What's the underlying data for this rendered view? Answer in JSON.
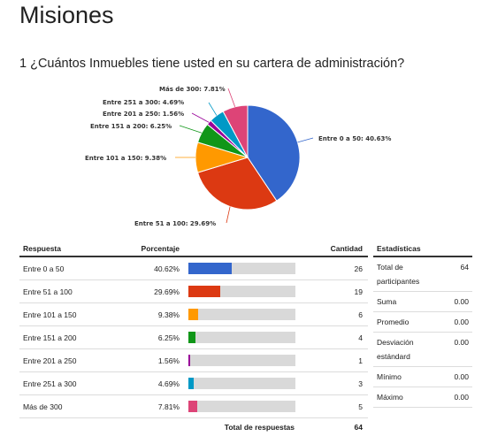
{
  "page": {
    "title": "Misiones"
  },
  "question": "1 ¿Cuántos Inmuebles tiene usted en su cartera de administración?",
  "chart_data": {
    "type": "pie",
    "title": "",
    "categories": [
      "Entre 0 a 50",
      "Entre 51 a 100",
      "Entre 101 a 150",
      "Entre 151 a 200",
      "Entre 201 a 250",
      "Entre 251 a 300",
      "Más de 300"
    ],
    "values": [
      40.63,
      29.69,
      9.38,
      6.25,
      1.56,
      4.69,
      7.81
    ],
    "labels": [
      "Entre 0 a 50: 40.63%",
      "Entre 51 a 100: 29.69%",
      "Entre 101 a 150: 9.38%",
      "Entre 151 a 200: 6.25%",
      "Entre 201 a 250: 1.56%",
      "Entre 251 a 300: 4.69%",
      "Más de 300: 7.81%"
    ],
    "colors": [
      "#3366cc",
      "#dc3912",
      "#ff9900",
      "#109618",
      "#990099",
      "#0099c6",
      "#dd4477"
    ]
  },
  "table": {
    "headers": {
      "response": "Respuesta",
      "percentage": "Porcentaje",
      "count": "Cantidad"
    },
    "rows": [
      {
        "response": "Entre 0 a 50",
        "percentage": "40.62%",
        "fraction": 0.4062,
        "count": "26"
      },
      {
        "response": "Entre 51 a 100",
        "percentage": "29.69%",
        "fraction": 0.2969,
        "count": "19"
      },
      {
        "response": "Entre 101 a 150",
        "percentage": "9.38%",
        "fraction": 0.0938,
        "count": "6"
      },
      {
        "response": "Entre 151 a 200",
        "percentage": "6.25%",
        "fraction": 0.0625,
        "count": "4"
      },
      {
        "response": "Entre 201 a 250",
        "percentage": "1.56%",
        "fraction": 0.0156,
        "count": "1"
      },
      {
        "response": "Entre 251 a 300",
        "percentage": "4.69%",
        "fraction": 0.0469,
        "count": "3"
      },
      {
        "response": "Más de 300",
        "percentage": "7.81%",
        "fraction": 0.0781,
        "count": "5"
      }
    ],
    "total_label": "Total de respuestas",
    "total_value": "64"
  },
  "stats": {
    "header": "Estadísticas",
    "rows": [
      {
        "label": "Total de participantes",
        "value": "64"
      },
      {
        "label": "Suma",
        "value": "0.00"
      },
      {
        "label": "Promedio",
        "value": "0.00"
      },
      {
        "label": "Desviación estándard",
        "value": "0.00"
      },
      {
        "label": "Mínimo",
        "value": "0.00"
      },
      {
        "label": "Máximo",
        "value": "0.00"
      }
    ]
  }
}
